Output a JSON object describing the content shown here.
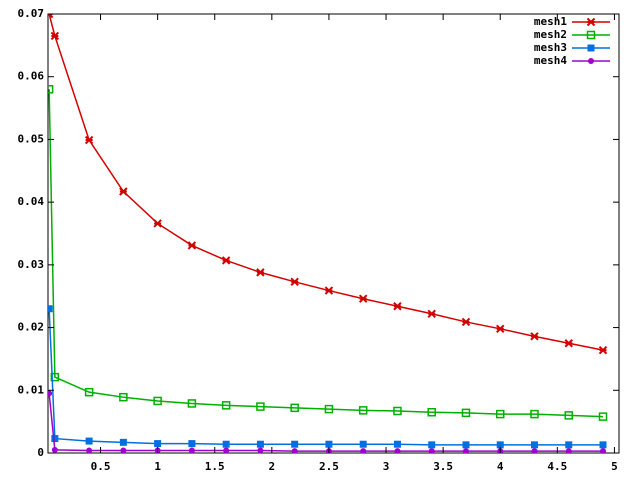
{
  "chart_data": {
    "type": "line",
    "x": [
      0.05,
      0.1,
      0.4,
      0.7,
      1.0,
      1.3,
      1.6,
      1.9,
      2.2,
      2.5,
      2.8,
      3.1,
      3.4,
      3.7,
      4.0,
      4.3,
      4.6,
      4.9
    ],
    "series": [
      {
        "name": "mesh1",
        "color": "#d40000",
        "marker": "x",
        "values": [
          0.07,
          0.0665,
          0.0499,
          0.0417,
          0.0366,
          0.0331,
          0.0307,
          0.0288,
          0.0273,
          0.0259,
          0.0246,
          0.0234,
          0.0222,
          0.0209,
          0.0198,
          0.0186,
          0.0175,
          0.0164
        ]
      },
      {
        "name": "mesh2",
        "color": "#00b000",
        "marker": "open-square",
        "values": [
          0.058,
          0.0121,
          0.0097,
          0.0089,
          0.0083,
          0.0079,
          0.0076,
          0.0074,
          0.0072,
          0.007,
          0.0068,
          0.0067,
          0.0065,
          0.0064,
          0.0062,
          0.0062,
          0.006,
          0.0058
        ]
      },
      {
        "name": "mesh3",
        "color": "#0070e0",
        "marker": "square",
        "values": [
          0.023,
          0.0023,
          0.0019,
          0.0017,
          0.0015,
          0.0015,
          0.0014,
          0.0014,
          0.0014,
          0.0014,
          0.0014,
          0.0014,
          0.0013,
          0.0013,
          0.0013,
          0.0013,
          0.0013,
          0.0013
        ]
      },
      {
        "name": "mesh4",
        "color": "#a000d0",
        "marker": "circle",
        "values": [
          0.0095,
          0.0005,
          0.0004,
          0.0004,
          0.0004,
          0.0004,
          0.0004,
          0.0004,
          0.0003,
          0.0003,
          0.0003,
          0.0003,
          0.0003,
          0.0003,
          0.0003,
          0.0003,
          0.0003,
          0.0003
        ]
      }
    ],
    "xlim": [
      0.04,
      5.04
    ],
    "xticks": [
      0.5,
      1,
      1.5,
      2,
      2.5,
      3,
      3.5,
      4,
      4.5,
      5
    ],
    "ylim": [
      0,
      0.07
    ],
    "yticks": [
      0,
      0.01,
      0.02,
      0.03,
      0.04,
      0.05,
      0.06,
      0.07
    ],
    "legend": "upper right"
  }
}
